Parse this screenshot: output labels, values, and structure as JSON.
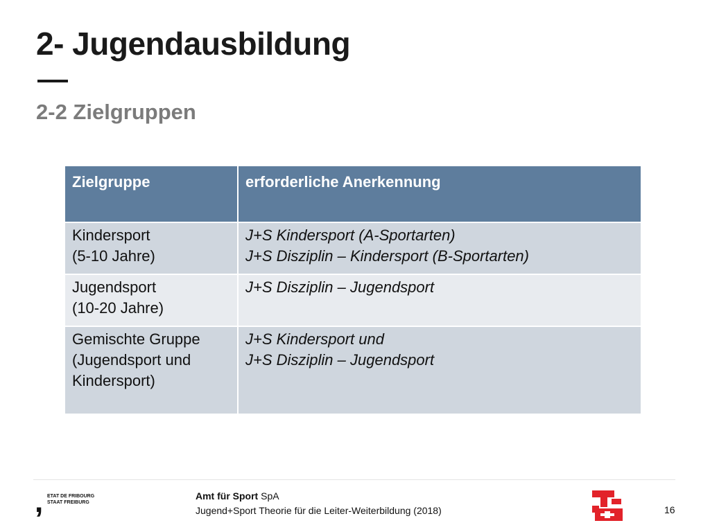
{
  "slide": {
    "title": "2- Jugendausbildung",
    "subtitle": "2-2 Zielgruppen"
  },
  "table": {
    "headers": [
      "Zielgruppe",
      "erforderliche Anerkennung"
    ],
    "rows": [
      {
        "group": [
          "Kindersport",
          "(5-10 Jahre)"
        ],
        "recognition": [
          "J+S Kindersport (A-Sportarten)",
          "J+S Disziplin – Kindersport (B-Sportarten)"
        ]
      },
      {
        "group": [
          "Jugendsport",
          "(10-20 Jahre)"
        ],
        "recognition": [
          "J+S Disziplin – Jugendsport"
        ]
      },
      {
        "group": [
          "Gemischte Gruppe",
          "(Jugendsport und",
          "Kindersport)"
        ],
        "recognition": [
          "J+S Kindersport und",
          "J+S Disziplin – Jugendsport"
        ]
      }
    ]
  },
  "footer": {
    "canton_logo_text": [
      "ETAT DE FRIBOURG",
      "STAAT FREIBURG"
    ],
    "org_bold": "Amt für Sport",
    "org_suffix": " SpA",
    "course": "Jugend+Sport Theorie für die Leiter-Weiterbildung (2018)",
    "page_number": "16"
  },
  "colors": {
    "header_bg": "#5e7d9d",
    "row_dark": "#cfd6de",
    "row_light": "#e8ebef",
    "logo_red": "#e2232a"
  }
}
